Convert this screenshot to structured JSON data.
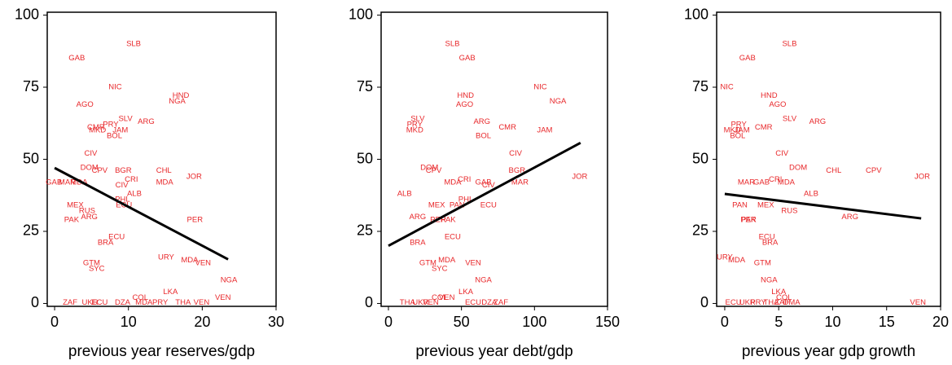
{
  "chart_data": [
    {
      "type": "scatter",
      "xlabel": "previous year reserves/gdp",
      "xlim": [
        -1,
        30
      ],
      "xticks": [
        0,
        10,
        20,
        30
      ],
      "ylim": [
        -1,
        101
      ],
      "yticks": [
        0,
        25,
        50,
        75,
        100
      ],
      "color": "#e8282b",
      "labels": [
        "SLB",
        "GAB",
        "NIC",
        "HND",
        "NGA",
        "AGO",
        "SLV",
        "ARG",
        "PRY",
        "CMR",
        "MKD",
        "JAM",
        "BOL",
        "CIV",
        "DOM",
        "CPV",
        "BGR",
        "CHL",
        "JOR",
        "CRI",
        "GAB",
        "MAR",
        "MDA",
        "MDA",
        "CIV",
        "ALB",
        "PHL",
        "ECU",
        "MEX",
        "RUS",
        "ARG",
        "PAK",
        "PER",
        "ECU",
        "BRA",
        "URY",
        "MDA",
        "VEN",
        "GTM",
        "SYC",
        "NGA",
        "LKA",
        "COL",
        "VEN",
        "ZAF",
        "UKR",
        "ECU",
        "DZA",
        "MDA",
        "PRY",
        "THA",
        "VEN"
      ],
      "x": [
        10.7,
        3.0,
        8.2,
        17.1,
        16.6,
        4.1,
        9.6,
        12.4,
        7.6,
        5.6,
        5.8,
        8.9,
        8.1,
        4.9,
        4.7,
        6.1,
        9.3,
        14.8,
        18.9,
        10.4,
        -0.1,
        1.7,
        3.3,
        14.9,
        9.1,
        10.8,
        9.2,
        9.4,
        2.8,
        4.4,
        4.7,
        2.3,
        19.0,
        8.4,
        6.9,
        15.1,
        18.3,
        20.1,
        5.0,
        5.7,
        23.6,
        15.7,
        11.6,
        22.8,
        2.1,
        4.8,
        6.1,
        9.2,
        12.1,
        14.3,
        17.4,
        19.9
      ],
      "y": [
        90,
        85,
        75,
        72,
        70,
        69,
        64,
        63,
        62,
        61,
        60,
        60,
        58,
        52,
        47,
        46,
        46,
        46,
        44,
        43,
        42,
        42,
        42,
        42,
        41,
        38,
        36,
        34,
        34,
        32,
        30,
        29,
        29,
        23,
        21,
        16,
        15,
        14,
        14,
        12,
        8,
        4,
        2,
        2,
        0.3,
        0.3,
        0.3,
        0.3,
        0.3,
        0.3,
        0.3,
        0.3
      ],
      "fit": {
        "x": [
          0,
          23.5
        ],
        "y": [
          47,
          15.3
        ]
      }
    },
    {
      "type": "scatter",
      "xlabel": "previous year debt/gdp",
      "xlim": [
        -5,
        150
      ],
      "xticks": [
        0,
        50,
        100,
        150
      ],
      "ylim": [
        -1,
        101
      ],
      "yticks": [
        0,
        25,
        50,
        75,
        100
      ],
      "color": "#e8282b",
      "labels": [
        "SLB",
        "GAB",
        "NIC",
        "NGA",
        "HND",
        "AGO",
        "SLV",
        "PRY",
        "MKD",
        "ARG",
        "CMR",
        "JAM",
        "BOL",
        "CIV",
        "DOM",
        "CPV",
        "BGR",
        "JOR",
        "CRI",
        "MDA",
        "GAB",
        "CIV",
        "MAR",
        "ALB",
        "PHL",
        "MEX",
        "PAN",
        "ECU",
        "ARG",
        "PER",
        "PAK",
        "ECU",
        "BRA",
        "MDA",
        "GTM",
        "VEN",
        "SYC",
        "NGA",
        "LKA",
        "COL",
        "VEN",
        "THA",
        "UKR",
        "VEN",
        "ECU",
        "DZA",
        "ZAF"
      ],
      "x": [
        43.8,
        53.9,
        104,
        116,
        52.8,
        52.2,
        20,
        18,
        18,
        64,
        81.5,
        107,
        65,
        87,
        28,
        31,
        88,
        131,
        52,
        44,
        65,
        68.5,
        90,
        11,
        53,
        33,
        47,
        68.5,
        20,
        34,
        41,
        44,
        20,
        40,
        27,
        58,
        35,
        65,
        53,
        35,
        40,
        13,
        22,
        29,
        58,
        69,
        77
      ],
      "y": [
        90,
        85,
        75,
        70,
        72,
        69,
        64,
        62,
        60,
        63,
        61,
        60,
        58,
        52,
        47,
        46,
        46,
        44,
        43,
        42,
        42,
        41,
        42,
        38,
        36,
        34,
        34,
        34,
        30,
        29,
        29,
        23,
        21,
        15,
        14,
        14,
        12,
        8,
        4,
        2,
        2,
        0.3,
        0.3,
        0.3,
        0.3,
        0.3,
        0.3
      ],
      "fit": {
        "x": [
          0,
          131.5
        ],
        "y": [
          20,
          55.7
        ]
      }
    },
    {
      "type": "scatter",
      "xlabel": "previous year gdp growth",
      "xlim": [
        -0.75,
        20
      ],
      "xticks": [
        0,
        5,
        10,
        15,
        20
      ],
      "ylim": [
        -1,
        101
      ],
      "yticks": [
        0,
        25,
        50,
        75,
        100
      ],
      "color": "#e8282b",
      "labels": [
        "SLB",
        "GAB",
        "NIC",
        "HND",
        "AGO",
        "SLV",
        "ARG",
        "PRY",
        "MKD",
        "JAM",
        "CMR",
        "BOL",
        "CIV",
        "DOM",
        "CHL",
        "CPV",
        "JOR",
        "CRI",
        "MAR",
        "GAB",
        "MDA",
        "ALB",
        "PAN",
        "MEX",
        "RUS",
        "ARG",
        "PER",
        "PAK",
        "ECU",
        "BRA",
        "URY",
        "MDA",
        "GTM",
        "NGA",
        "LKA",
        "COL",
        "VEN",
        "ECU",
        "UKR",
        "PRY",
        "THA",
        "ZAF",
        "DMA"
      ],
      "x": [
        6.0,
        2.1,
        0.2,
        4.1,
        4.9,
        6.0,
        8.6,
        1.3,
        0.7,
        1.6,
        3.6,
        1.2,
        5.3,
        6.8,
        10.1,
        13.8,
        18.3,
        4.7,
        2.0,
        3.4,
        5.7,
        8.0,
        1.4,
        3.8,
        6.0,
        11.6,
        2.2,
        2.2,
        3.9,
        4.2,
        0,
        1.1,
        3.5,
        4.1,
        5.0,
        5.5,
        17.9,
        0.8,
        2.1,
        3.1,
        4.3,
        5.3,
        6.2
      ],
      "y": [
        90,
        85,
        75,
        72,
        69,
        64,
        63,
        62,
        60,
        60,
        61,
        58,
        52,
        47,
        46,
        46,
        44,
        43,
        42,
        42,
        42,
        38,
        34,
        34,
        32,
        30,
        29,
        29,
        23,
        21,
        16,
        15,
        14,
        8,
        4,
        2,
        0.3,
        0.3,
        0.3,
        0.3,
        0.3,
        0.3,
        0.3
      ],
      "fit": {
        "x": [
          0,
          18.2
        ],
        "y": [
          38,
          29.5
        ]
      }
    }
  ]
}
